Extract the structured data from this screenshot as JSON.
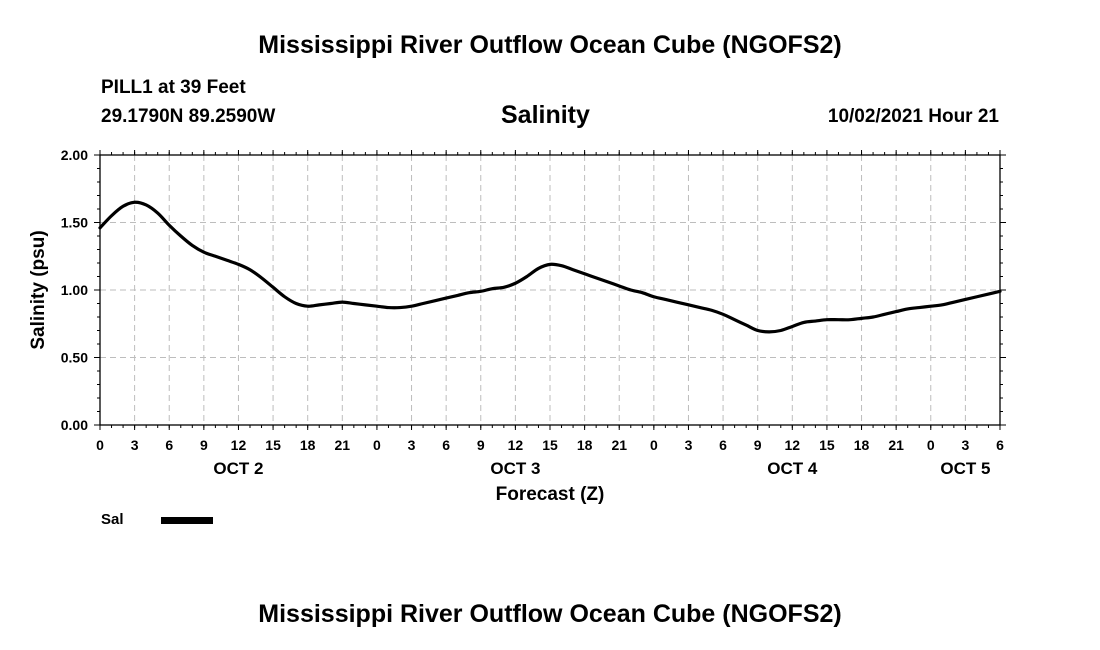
{
  "header": {
    "title": "Mississippi River Outflow Ocean Cube (NGOFS2)",
    "station": "PILL1 at 39 Feet",
    "coords": "29.1790N  89.2590W",
    "datetime": "10/02/2021 Hour 21"
  },
  "footer": {
    "title": "Mississippi River Outflow Ocean Cube (NGOFS2)"
  },
  "chart_data": {
    "type": "line",
    "title": "Salinity",
    "xlabel": "Forecast (Z)",
    "ylabel": "Salinity (psu)",
    "ylim": [
      0,
      2
    ],
    "yticks": [
      "0.00",
      "0.50",
      "1.00",
      "1.50",
      "2.00"
    ],
    "xlim": [
      0,
      78
    ],
    "xtick_labels": [
      "0",
      "3",
      "6",
      "9",
      "12",
      "15",
      "18",
      "21",
      "0",
      "3",
      "6",
      "9",
      "12",
      "15",
      "18",
      "21",
      "0",
      "3",
      "6",
      "9",
      "12",
      "15",
      "18",
      "21",
      "0",
      "3",
      "6"
    ],
    "date_labels": [
      {
        "label": "OCT 2",
        "hour": 12
      },
      {
        "label": "OCT 3",
        "hour": 36
      },
      {
        "label": "OCT 4",
        "hour": 60
      },
      {
        "label": "OCT 5",
        "hour": 75
      }
    ],
    "grid": true,
    "legend": [
      {
        "name": "Sal"
      }
    ],
    "series": [
      {
        "name": "Sal",
        "x": [
          0,
          1,
          2,
          3,
          4,
          5,
          6,
          7,
          8,
          9,
          10,
          11,
          12,
          13,
          14,
          15,
          16,
          17,
          18,
          19,
          20,
          21,
          22,
          23,
          24,
          25,
          26,
          27,
          28,
          29,
          30,
          31,
          32,
          33,
          34,
          35,
          36,
          37,
          38,
          39,
          40,
          41,
          42,
          43,
          44,
          45,
          46,
          47,
          48,
          49,
          50,
          51,
          52,
          53,
          54,
          55,
          56,
          57,
          58,
          59,
          60,
          61,
          62,
          63,
          64,
          65,
          66,
          67,
          68,
          69,
          70,
          71,
          72,
          73,
          74,
          75,
          76,
          77,
          78
        ],
        "values": [
          1.46,
          1.55,
          1.62,
          1.65,
          1.63,
          1.57,
          1.48,
          1.4,
          1.33,
          1.28,
          1.25,
          1.22,
          1.19,
          1.15,
          1.09,
          1.02,
          0.95,
          0.9,
          0.88,
          0.89,
          0.9,
          0.91,
          0.9,
          0.89,
          0.88,
          0.87,
          0.87,
          0.88,
          0.9,
          0.92,
          0.94,
          0.96,
          0.98,
          0.99,
          1.01,
          1.02,
          1.05,
          1.1,
          1.16,
          1.19,
          1.18,
          1.15,
          1.12,
          1.09,
          1.06,
          1.03,
          1.0,
          0.98,
          0.95,
          0.93,
          0.91,
          0.89,
          0.87,
          0.85,
          0.82,
          0.78,
          0.74,
          0.7,
          0.69,
          0.7,
          0.73,
          0.76,
          0.77,
          0.78,
          0.78,
          0.78,
          0.79,
          0.8,
          0.82,
          0.84,
          0.86,
          0.87,
          0.88,
          0.89,
          0.91,
          0.93,
          0.95,
          0.97,
          0.99
        ]
      }
    ]
  }
}
